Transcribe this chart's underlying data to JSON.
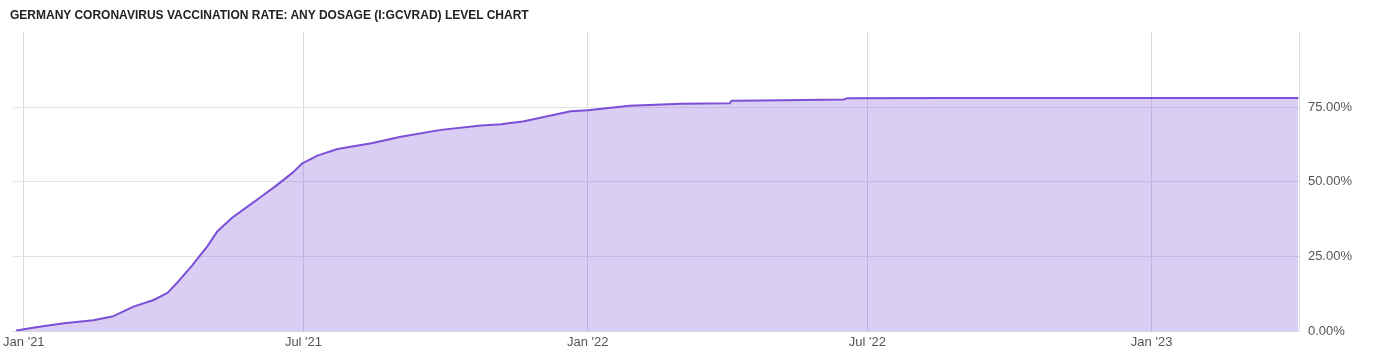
{
  "chart_data": {
    "type": "area",
    "title": "GERMANY CORONAVIRUS VACCINATION RATE: ANY DOSAGE (I:GCVRAD) LEVEL CHART",
    "x": [
      "2020-12-27",
      "2021-01-01",
      "2021-01-09",
      "2021-01-27",
      "2021-02-15",
      "2021-02-28",
      "2021-03-13",
      "2021-03-26",
      "2021-04-04",
      "2021-04-11",
      "2021-04-20",
      "2021-04-30",
      "2021-05-06",
      "2021-05-16",
      "2021-05-26",
      "2021-06-04",
      "2021-06-14",
      "2021-06-24",
      "2021-06-30",
      "2021-07-10",
      "2021-07-23",
      "2021-08-14",
      "2021-09-02",
      "2021-09-28",
      "2021-10-24",
      "2021-11-06",
      "2021-11-20",
      "2021-12-21",
      "2022-01-01",
      "2022-01-28",
      "2022-03-03",
      "2022-04-03",
      "2022-04-04",
      "2022-06-16",
      "2022-06-18",
      "2022-08-21",
      "2022-10-02",
      "2023-04-06"
    ],
    "series": [
      {
        "color": "#7b4fd6",
        "values": [
          0.3,
          0.7,
          1.4,
          2.7,
          3.7,
          5.1,
          8.3,
          10.5,
          12.9,
          16.7,
          22.1,
          28.6,
          33.3,
          38.1,
          41.8,
          45.2,
          49.0,
          53.1,
          56.1,
          58.8,
          61.0,
          62.9,
          65.1,
          67.4,
          68.9,
          69.3,
          70.2,
          73.6,
          74.0,
          75.5,
          76.1,
          76.3,
          77.1,
          77.6,
          78.0,
          78.1,
          78.1,
          78.1
        ]
      }
    ],
    "xlim": [
      "2020-12-25",
      "2023-04-07"
    ],
    "xticks": [
      {
        "value": "2021-01-01",
        "label": "Jan '21"
      },
      {
        "value": "2021-07-01",
        "label": "Jul '21"
      },
      {
        "value": "2022-01-01",
        "label": "Jan '22"
      },
      {
        "value": "2022-07-01",
        "label": "Jul '22"
      },
      {
        "value": "2023-01-01",
        "label": "Jan '23"
      }
    ],
    "ylim": [
      0,
      100
    ],
    "yticks": [
      {
        "value": 0,
        "label": "0.00%"
      },
      {
        "value": 25,
        "label": "25.00%"
      },
      {
        "value": 50,
        "label": "50.00%"
      },
      {
        "value": 75,
        "label": "75.00%"
      }
    ],
    "grid": true
  }
}
